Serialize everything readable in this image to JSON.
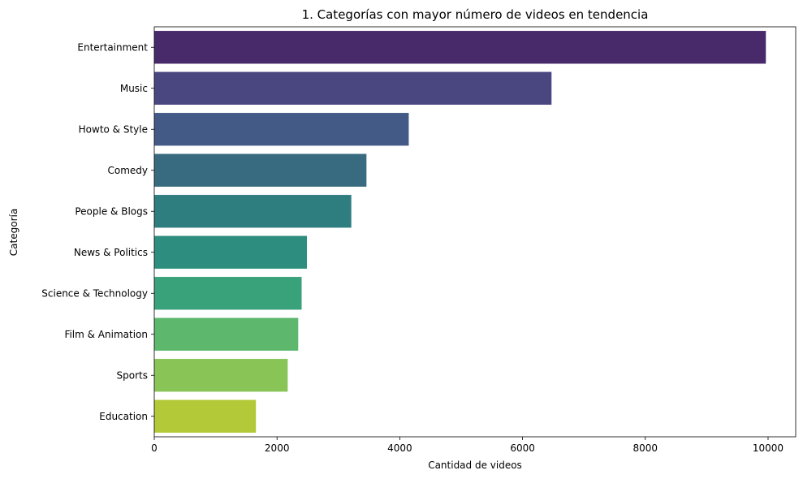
{
  "chart_data": {
    "type": "bar",
    "orientation": "horizontal",
    "title": "1. Categorías con mayor número de videos en tendencia",
    "xlabel": "Cantidad de videos",
    "ylabel": "Categoría",
    "categories": [
      "Entertainment",
      "Music",
      "Howto & Style",
      "Comedy",
      "People & Blogs",
      "News & Politics",
      "Science & Technology",
      "Film & Animation",
      "Sports",
      "Education"
    ],
    "values": [
      9964,
      6472,
      4146,
      3457,
      3210,
      2487,
      2401,
      2345,
      2174,
      1656
    ],
    "colors": [
      "#482a6b",
      "#4a4680",
      "#435a87",
      "#386b80",
      "#2e7d7f",
      "#2d8e7f",
      "#3aa27a",
      "#5db86e",
      "#88c456",
      "#b4c938"
    ],
    "xlim": [
      0,
      10450
    ],
    "xticks": [
      0,
      2000,
      4000,
      6000,
      8000,
      10000
    ],
    "xtick_labels": [
      "0",
      "2000",
      "4000",
      "6000",
      "8000",
      "10000"
    ],
    "grid": false,
    "legend": "none"
  }
}
